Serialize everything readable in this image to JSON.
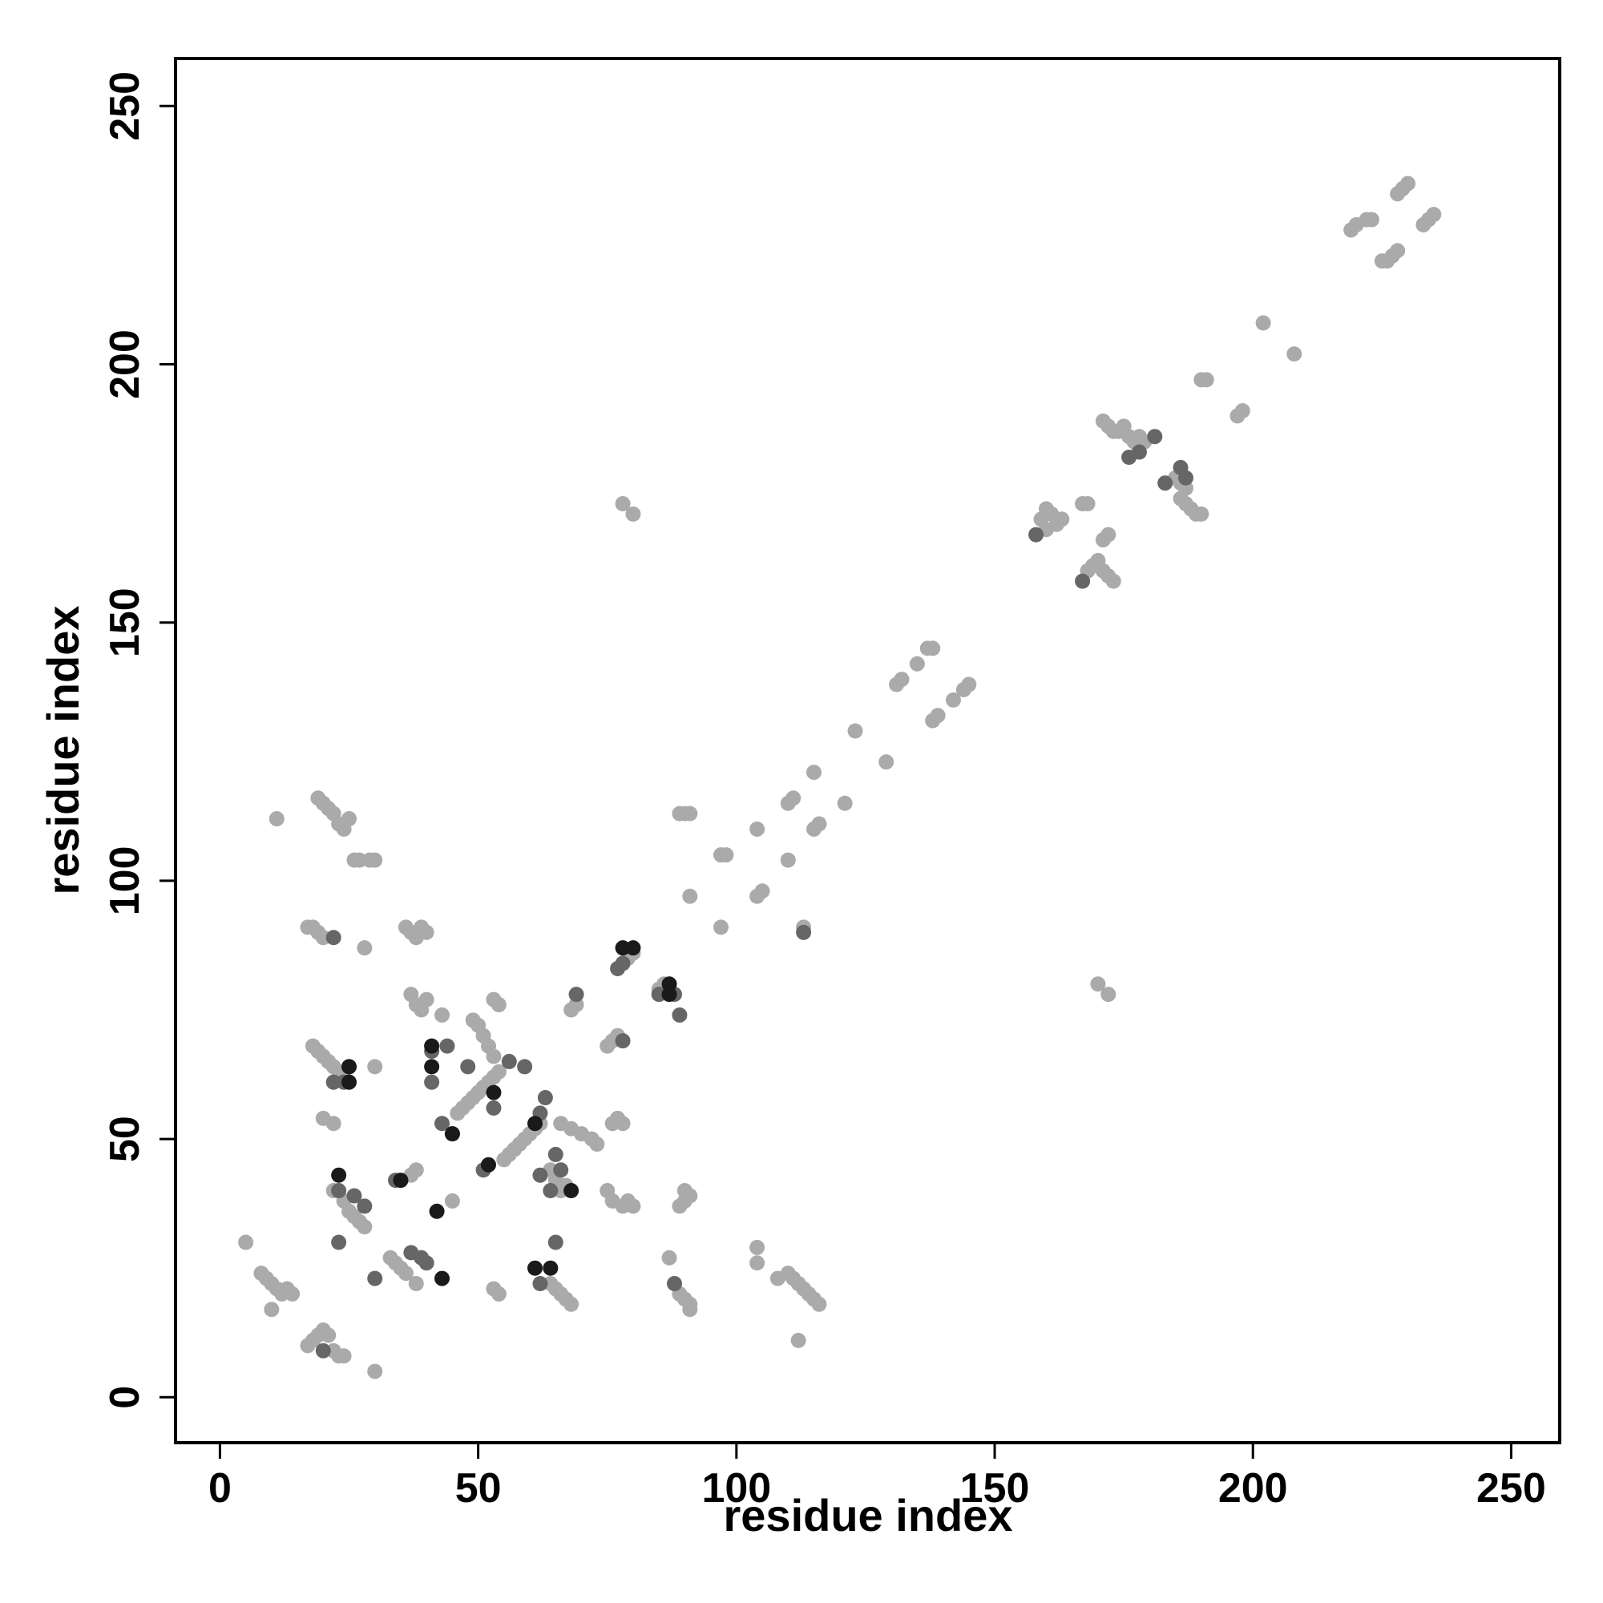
{
  "chart_data": {
    "type": "scatter",
    "xlabel": "residue index",
    "ylabel": "residue index",
    "xlim": [
      -8.6,
      259.4
    ],
    "ylim": [
      -8.8,
      259.2
    ],
    "xticks": [
      0,
      50,
      100,
      150,
      200,
      250
    ],
    "yticks": [
      0,
      50,
      100,
      150,
      200,
      250
    ],
    "series": [
      {
        "color": "#aaaaaa",
        "x": [
          219,
          220,
          222,
          223,
          225,
          226,
          227,
          228,
          228,
          229,
          230,
          233,
          234,
          235,
          202,
          208,
          190,
          191,
          197,
          198,
          171,
          172,
          173,
          174,
          175,
          176,
          177,
          178,
          179,
          185,
          186,
          187,
          186,
          187,
          188,
          189,
          190,
          159,
          160,
          161,
          162,
          163,
          160,
          167,
          168,
          168,
          169,
          170,
          171,
          172,
          173,
          171,
          172,
          78,
          80,
          170,
          172,
          131,
          132,
          135,
          137,
          138,
          138,
          139,
          142,
          144,
          145,
          123,
          129,
          110,
          111,
          115,
          116,
          115,
          121,
          104,
          110,
          97,
          98,
          104,
          105,
          91,
          97,
          89,
          90,
          91,
          113,
          19,
          20,
          21,
          22,
          23,
          24,
          25,
          11,
          27,
          30,
          28,
          17,
          18,
          19,
          20,
          36,
          37,
          38,
          39,
          40,
          37,
          38,
          39,
          40,
          43,
          18,
          19,
          20,
          21,
          22,
          23,
          24,
          20,
          22,
          30,
          46,
          47,
          48,
          49,
          50,
          51,
          52,
          53,
          54,
          55,
          56,
          57,
          58,
          59,
          60,
          61,
          62,
          49,
          50,
          51,
          52,
          53,
          53,
          54,
          73,
          72,
          70,
          68,
          66,
          76,
          77,
          78,
          75,
          76,
          77,
          68,
          69,
          79,
          80,
          85,
          86,
          64,
          65,
          66,
          67,
          22,
          24,
          25,
          26,
          27,
          28,
          38,
          36,
          35,
          34,
          33,
          45,
          37,
          38,
          75,
          76,
          78,
          79,
          80,
          89,
          90,
          91,
          90,
          89,
          90,
          91,
          91,
          104,
          104,
          29,
          26,
          108,
          110,
          111,
          112,
          113,
          114,
          115,
          116,
          112,
          8,
          9,
          10,
          11,
          12,
          13,
          14,
          10,
          5,
          30,
          17,
          18,
          19,
          20,
          21,
          22,
          23,
          24,
          53,
          54,
          64,
          65,
          66,
          67,
          68,
          87
        ],
        "y": [
          226,
          227,
          228,
          228,
          220,
          220,
          221,
          222,
          233,
          234,
          235,
          227,
          228,
          229,
          208,
          202,
          197,
          197,
          190,
          191,
          189,
          188,
          187,
          187,
          188,
          186,
          185,
          186,
          185,
          178,
          177,
          176,
          174,
          173,
          172,
          171,
          171,
          170,
          168,
          171,
          169,
          170,
          172,
          173,
          173,
          160,
          161,
          162,
          160,
          159,
          158,
          166,
          167,
          173,
          171,
          80,
          78,
          138,
          139,
          142,
          145,
          145,
          131,
          132,
          135,
          137,
          138,
          129,
          123,
          115,
          116,
          110,
          111,
          121,
          115,
          110,
          104,
          105,
          105,
          97,
          98,
          97,
          91,
          113,
          113,
          113,
          91,
          116,
          115,
          114,
          113,
          111,
          110,
          112,
          112,
          104,
          104,
          87,
          91,
          91,
          90,
          89,
          91,
          90,
          89,
          91,
          90,
          78,
          76,
          75,
          77,
          74,
          68,
          67,
          66,
          65,
          64,
          63,
          62,
          54,
          53,
          64,
          55,
          56,
          57,
          58,
          59,
          60,
          61,
          62,
          63,
          46,
          47,
          48,
          49,
          50,
          51,
          52,
          53,
          73,
          72,
          70,
          68,
          66,
          77,
          76,
          49,
          50,
          51,
          52,
          53,
          53,
          54,
          53,
          68,
          69,
          70,
          75,
          76,
          85,
          86,
          79,
          80,
          44,
          42,
          40,
          41,
          40,
          38,
          36,
          35,
          34,
          33,
          22,
          24,
          25,
          26,
          27,
          38,
          43,
          44,
          40,
          38,
          37,
          38,
          37,
          37,
          38,
          39,
          40,
          20,
          19,
          18,
          17,
          29,
          26,
          104,
          104,
          23,
          24,
          23,
          22,
          21,
          20,
          19,
          18,
          11,
          24,
          23,
          22,
          21,
          20,
          21,
          20,
          17,
          30,
          5,
          10,
          11,
          12,
          13,
          12,
          9,
          8,
          8,
          21,
          20,
          22,
          21,
          20,
          19,
          18,
          27
        ]
      },
      {
        "color": "#666666",
        "x": [
          20,
          22,
          24,
          25,
          22,
          23,
          26,
          28,
          23,
          30,
          34,
          37,
          39,
          40,
          41,
          41,
          44,
          43,
          45,
          48,
          51,
          53,
          56,
          59,
          63,
          62,
          62,
          64,
          65,
          65,
          62,
          66,
          88,
          85,
          88,
          89,
          69,
          78,
          77,
          78,
          181,
          176,
          183,
          186,
          187,
          158,
          167,
          113,
          178
        ],
        "y": [
          9,
          89,
          61,
          64,
          61,
          40,
          39,
          37,
          30,
          23,
          42,
          28,
          27,
          26,
          67,
          61,
          68,
          53,
          51,
          64,
          44,
          56,
          65,
          64,
          58,
          55,
          43,
          40,
          47,
          30,
          22,
          44,
          22,
          78,
          78,
          74,
          78,
          69,
          83,
          84,
          186,
          182,
          177,
          180,
          178,
          167,
          158,
          90,
          183
        ]
      },
      {
        "color": "#1a1a1a",
        "x": [
          23,
          25,
          25,
          35,
          41,
          41,
          42,
          43,
          45,
          52,
          53,
          61,
          64,
          61,
          68,
          78,
          80,
          87,
          87
        ],
        "y": [
          43,
          61,
          64,
          42,
          68,
          64,
          36,
          23,
          51,
          45,
          59,
          25,
          25,
          53,
          40,
          87,
          87,
          80,
          78
        ]
      }
    ]
  }
}
